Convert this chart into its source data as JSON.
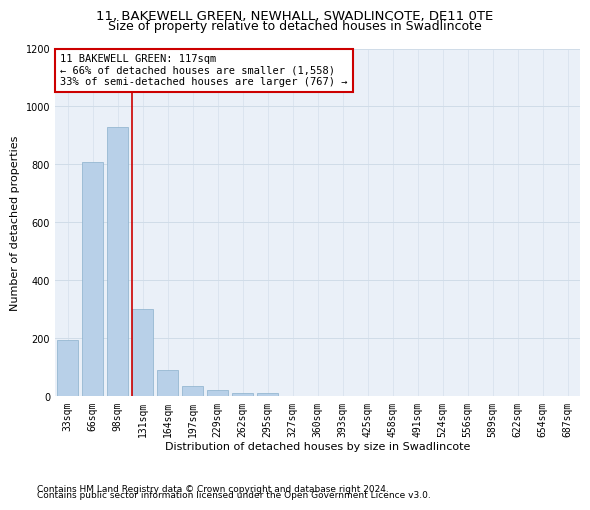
{
  "title1": "11, BAKEWELL GREEN, NEWHALL, SWADLINCOTE, DE11 0TE",
  "title2": "Size of property relative to detached houses in Swadlincote",
  "xlabel": "Distribution of detached houses by size in Swadlincote",
  "ylabel": "Number of detached properties",
  "bar_color": "#b8d0e8",
  "bar_edge_color": "#8ab0cc",
  "categories": [
    "33sqm",
    "66sqm",
    "98sqm",
    "131sqm",
    "164sqm",
    "197sqm",
    "229sqm",
    "262sqm",
    "295sqm",
    "327sqm",
    "360sqm",
    "393sqm",
    "425sqm",
    "458sqm",
    "491sqm",
    "524sqm",
    "556sqm",
    "589sqm",
    "622sqm",
    "654sqm",
    "687sqm"
  ],
  "values": [
    195,
    810,
    930,
    300,
    90,
    37,
    22,
    13,
    10,
    0,
    0,
    0,
    0,
    0,
    0,
    0,
    0,
    0,
    0,
    0,
    0
  ],
  "ylim": [
    0,
    1200
  ],
  "yticks": [
    0,
    200,
    400,
    600,
    800,
    1000,
    1200
  ],
  "vline_pos": 2.57,
  "annotation_line1": "11 BAKEWELL GREEN: 117sqm",
  "annotation_line2": "← 66% of detached houses are smaller (1,558)",
  "annotation_line3": "33% of semi-detached houses are larger (767) →",
  "box_facecolor": "#ffffff",
  "box_edgecolor": "#cc0000",
  "vline_color": "#cc0000",
  "footer1": "Contains HM Land Registry data © Crown copyright and database right 2024.",
  "footer2": "Contains public sector information licensed under the Open Government Licence v3.0.",
  "grid_color": "#d0dce8",
  "bg_color": "#eaf0f8",
  "title1_fontsize": 9.5,
  "title2_fontsize": 9,
  "axis_label_fontsize": 8,
  "tick_fontsize": 7,
  "annotation_fontsize": 7.5,
  "footer_fontsize": 6.5
}
